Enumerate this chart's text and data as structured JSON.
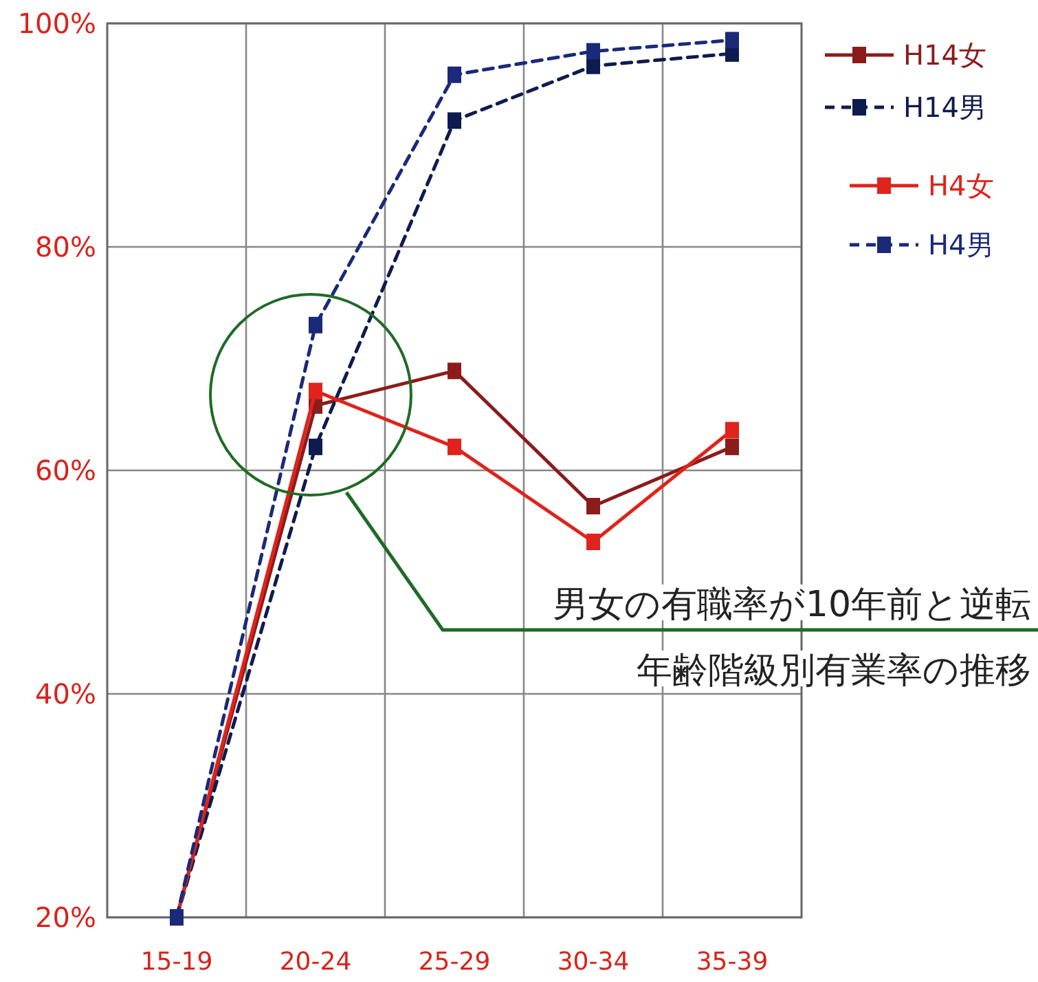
{
  "chart_data": {
    "type": "line",
    "categories": [
      "15-19",
      "20-24",
      "25-29",
      "30-34",
      "35-39"
    ],
    "series": [
      {
        "name": "H14女",
        "color": "#8b1c1c",
        "line_style": "solid",
        "values": [
          20,
          65.8,
          68.9,
          56.8,
          62.1
        ]
      },
      {
        "name": "H14男",
        "color": "#0d1b4f",
        "line_style": "dashed",
        "values": [
          20,
          62.1,
          91.3,
          96.2,
          97.3
        ]
      },
      {
        "name": "H4女",
        "color": "#e0231c",
        "line_style": "solid",
        "values": [
          20,
          67.1,
          62.1,
          53.6,
          63.6
        ]
      },
      {
        "name": "H4男",
        "color": "#1a2a78",
        "line_style": "dashed",
        "values": [
          20,
          73.0,
          95.4,
          97.5,
          98.5
        ]
      }
    ],
    "ylim": [
      20,
      100
    ],
    "yticks": [
      {
        "value": 20,
        "label": "20%"
      },
      {
        "value": 40,
        "label": "40%"
      },
      {
        "value": 60,
        "label": "60%"
      },
      {
        "value": 80,
        "label": "80%"
      },
      {
        "value": 100,
        "label": "100%"
      }
    ],
    "grid": true,
    "marker": "square",
    "legend": "right",
    "annotations": [
      "男女の有職率が10年前と逆転",
      "年齢階級別有業率の推移"
    ]
  }
}
